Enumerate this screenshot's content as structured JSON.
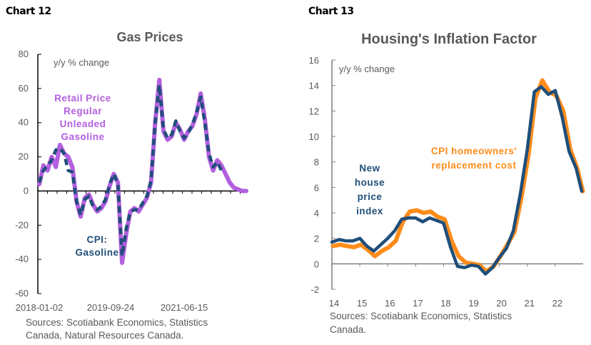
{
  "chart_data": [
    {
      "id": "chart12",
      "label": "Chart 12",
      "type": "line",
      "title": "Gas Prices",
      "ylabel": "y/y % change",
      "ylim": [
        -60,
        80
      ],
      "yticks": [
        -60,
        -40,
        -20,
        0,
        20,
        40,
        60,
        80
      ],
      "xtick_labels": [
        "2018-01-02",
        "2019-09-24",
        "2021-06-15"
      ],
      "sources": [
        "Sources: Scotiabank Economics, Statistics",
        "Canada, Natural Resources Canada."
      ],
      "series": [
        {
          "name": "Retail Price Regular Unleaded Gasoline",
          "label_lines": [
            "Retail Price",
            "Regular",
            "Unleaded",
            "Gasoline"
          ],
          "color": "#B35FE0",
          "style": "solid",
          "x": [
            0,
            0.02,
            0.04,
            0.06,
            0.08,
            0.1,
            0.12,
            0.14,
            0.16,
            0.18,
            0.2,
            0.22,
            0.24,
            0.26,
            0.28,
            0.3,
            0.32,
            0.34,
            0.36,
            0.38,
            0.4,
            0.42,
            0.44,
            0.46,
            0.48,
            0.5,
            0.52,
            0.54,
            0.56,
            0.58,
            0.6,
            0.62,
            0.64,
            0.66,
            0.68,
            0.7,
            0.72,
            0.74,
            0.76,
            0.78,
            0.8,
            0.82,
            0.84,
            0.86,
            0.88,
            0.9,
            0.92,
            0.94,
            0.96,
            0.98,
            1.0
          ],
          "values": [
            4,
            15,
            12,
            20,
            14,
            27,
            22,
            20,
            14,
            -6,
            -15,
            -4,
            -2,
            -8,
            -12,
            -10,
            -6,
            3,
            10,
            5,
            -42,
            -25,
            -12,
            -10,
            -12,
            -8,
            -4,
            5,
            40,
            65,
            35,
            30,
            32,
            40,
            36,
            30,
            35,
            38,
            45,
            57,
            42,
            20,
            12,
            18,
            15,
            10,
            5,
            2,
            1,
            0,
            0
          ]
        },
        {
          "name": "CPI: Gasoline",
          "label_lines": [
            "CPI:",
            "Gasoline"
          ],
          "color": "#1F4E79",
          "style": "dashed",
          "x": [
            0,
            0.02,
            0.04,
            0.06,
            0.08,
            0.1,
            0.12,
            0.14,
            0.16,
            0.18,
            0.2,
            0.22,
            0.24,
            0.26,
            0.28,
            0.3,
            0.32,
            0.34,
            0.36,
            0.38,
            0.4,
            0.42,
            0.44,
            0.46,
            0.48,
            0.5,
            0.52,
            0.54,
            0.56,
            0.58,
            0.6,
            0.62,
            0.64,
            0.66,
            0.68,
            0.7,
            0.72,
            0.74,
            0.76,
            0.78,
            0.8,
            0.82,
            0.84,
            0.86,
            0.88
          ],
          "values": [
            5,
            12,
            15,
            18,
            24,
            25,
            22,
            12,
            11,
            -6,
            -14,
            -5,
            -3,
            -9,
            -11,
            -9,
            -5,
            4,
            10,
            4,
            -38,
            -22,
            -12,
            -11,
            -11,
            -7,
            -3,
            6,
            40,
            62,
            36,
            31,
            33,
            41,
            35,
            31,
            34,
            39,
            46,
            55,
            40,
            22,
            14,
            17,
            12
          ]
        }
      ]
    },
    {
      "id": "chart13",
      "label": "Chart 13",
      "type": "line",
      "title": "Housing's Inflation Factor",
      "ylabel": "y/y % change",
      "ylim": [
        -2,
        16
      ],
      "yticks": [
        -2,
        0,
        2,
        4,
        6,
        8,
        10,
        12,
        14,
        16
      ],
      "xlim": [
        14,
        23
      ],
      "xtick_labels": [
        "14",
        "15",
        "16",
        "17",
        "18",
        "19",
        "20",
        "21",
        "22"
      ],
      "sources": [
        "Sources: Scotiabank Economics, Statistics",
        "Canada."
      ],
      "series": [
        {
          "name": "CPI homeowners' replacement cost",
          "label_lines": [
            "CPI  homeowners'",
            "replacement cost"
          ],
          "color": "#FF8C1A",
          "style": "solid",
          "x": [
            14.0,
            14.25,
            14.5,
            14.75,
            15.0,
            15.25,
            15.5,
            15.75,
            16.0,
            16.25,
            16.5,
            16.75,
            17.0,
            17.25,
            17.5,
            17.75,
            18.0,
            18.25,
            18.5,
            18.75,
            19.0,
            19.25,
            19.5,
            19.75,
            20.0,
            20.25,
            20.5,
            20.75,
            21.0,
            21.25,
            21.5,
            21.75,
            22.0,
            22.25,
            22.5,
            22.75,
            22.95
          ],
          "values": [
            1.4,
            1.5,
            1.4,
            1.3,
            1.5,
            1.1,
            0.6,
            1.0,
            1.3,
            1.8,
            3.3,
            4.1,
            4.2,
            4.0,
            4.1,
            3.7,
            3.5,
            1.8,
            0.6,
            0.1,
            0.0,
            -0.1,
            -0.6,
            -0.2,
            0.6,
            1.5,
            2.5,
            5.2,
            8.5,
            13.0,
            14.4,
            13.5,
            13.2,
            12.0,
            9.0,
            7.5,
            5.7
          ]
        },
        {
          "name": "New house price index",
          "label_lines": [
            "New",
            "house",
            "price",
            "index"
          ],
          "color": "#1F4E79",
          "style": "solid",
          "x": [
            14.0,
            14.25,
            14.5,
            14.75,
            15.0,
            15.25,
            15.5,
            15.75,
            16.0,
            16.25,
            16.5,
            16.75,
            17.0,
            17.25,
            17.5,
            17.75,
            18.0,
            18.25,
            18.5,
            18.75,
            19.0,
            19.25,
            19.5,
            19.75,
            20.0,
            20.25,
            20.5,
            20.75,
            21.0,
            21.25,
            21.5,
            21.75,
            22.0,
            22.25,
            22.5,
            22.75,
            22.95
          ],
          "values": [
            1.7,
            1.9,
            1.8,
            1.8,
            2.0,
            1.4,
            1.0,
            1.5,
            2.0,
            2.6,
            3.5,
            3.6,
            3.6,
            3.3,
            3.6,
            3.4,
            3.2,
            1.3,
            -0.2,
            -0.3,
            -0.1,
            -0.2,
            -0.8,
            -0.3,
            0.5,
            1.2,
            2.6,
            5.5,
            9.0,
            13.5,
            13.9,
            13.3,
            13.6,
            11.5,
            8.8,
            7.5,
            5.7
          ]
        }
      ]
    }
  ]
}
